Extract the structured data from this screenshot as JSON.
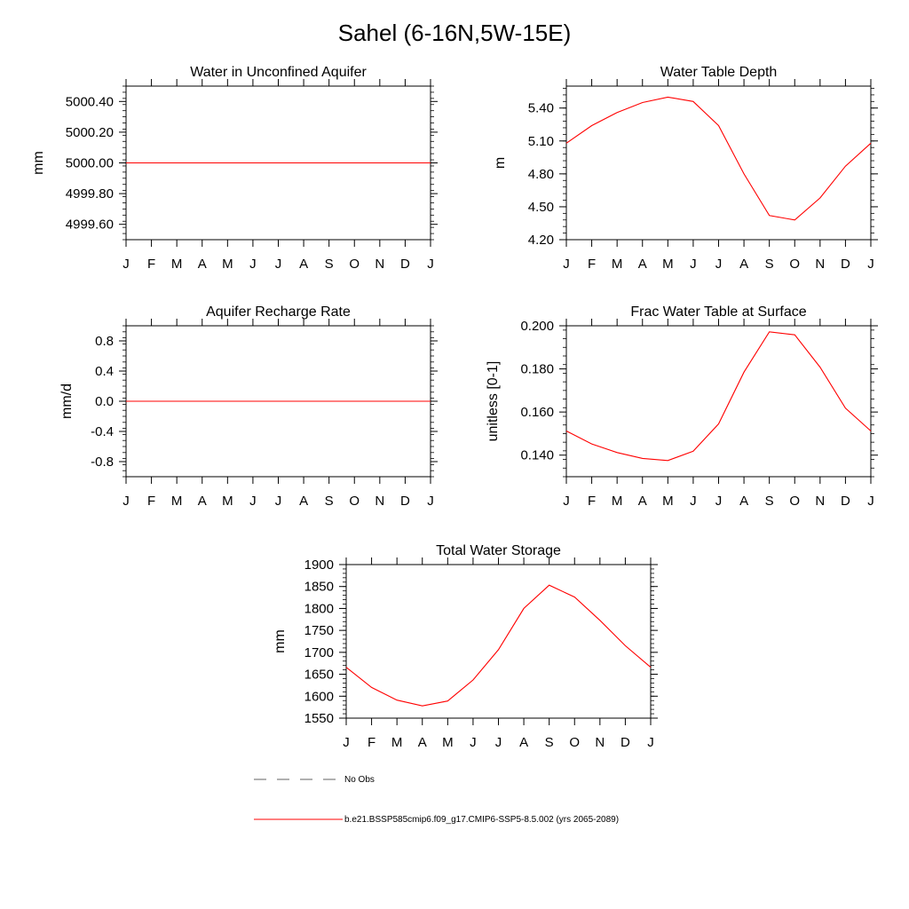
{
  "title": "Sahel (6-16N,5W-15E)",
  "colors": {
    "model": "#ff0000",
    "obs": "#808080",
    "axis": "#000000"
  },
  "legend": {
    "obs_label": "No Obs",
    "model_label": "b.e21.BSSP585cmip6.f09_g17.CMIP6-SSP5-8.5.002 (yrs 2065-2089)"
  },
  "chart_data": [
    {
      "id": "aquifer",
      "type": "line",
      "title": "Water in Unconfined Aquifer",
      "xlabel": "",
      "ylabel": "mm",
      "categories": [
        "J",
        "F",
        "M",
        "A",
        "M",
        "J",
        "J",
        "A",
        "S",
        "O",
        "N",
        "D",
        "J"
      ],
      "ylim": [
        4999.5,
        5000.5
      ],
      "yticks": [
        "5000.40",
        "5000.20",
        "5000.00",
        "4999.80",
        "4999.60"
      ],
      "ytick_values": [
        5000.4,
        5000.2,
        5000.0,
        4999.8,
        4999.6
      ],
      "series": [
        {
          "name": "model",
          "values": [
            5000,
            5000,
            5000,
            5000,
            5000,
            5000,
            5000,
            5000,
            5000,
            5000,
            5000,
            5000,
            5000
          ]
        }
      ]
    },
    {
      "id": "wtd",
      "type": "line",
      "title": "Water Table Depth",
      "xlabel": "",
      "ylabel": "m",
      "categories": [
        "J",
        "F",
        "M",
        "A",
        "M",
        "J",
        "J",
        "A",
        "S",
        "O",
        "N",
        "D",
        "J"
      ],
      "ylim": [
        4.2,
        5.6
      ],
      "yticks": [
        "5.40",
        "5.10",
        "4.80",
        "4.50",
        "4.20"
      ],
      "ytick_values": [
        5.4,
        5.1,
        4.8,
        4.5,
        4.2
      ],
      "series": [
        {
          "name": "model",
          "values": [
            5.08,
            5.24,
            5.36,
            5.45,
            5.5,
            5.46,
            5.24,
            4.8,
            4.42,
            4.38,
            4.58,
            4.87,
            5.08
          ]
        }
      ]
    },
    {
      "id": "recharge",
      "type": "line",
      "title": "Aquifer Recharge Rate",
      "xlabel": "",
      "ylabel": "mm/d",
      "categories": [
        "J",
        "F",
        "M",
        "A",
        "M",
        "J",
        "J",
        "A",
        "S",
        "O",
        "N",
        "D",
        "J"
      ],
      "ylim": [
        -1.0,
        1.0
      ],
      "yticks": [
        "0.8",
        "0.4",
        "0.0",
        "-0.4",
        "-0.8"
      ],
      "ytick_values": [
        0.8,
        0.4,
        0.0,
        -0.4,
        -0.8
      ],
      "series": [
        {
          "name": "model",
          "values": [
            0,
            0,
            0,
            0,
            0,
            0,
            0,
            0,
            0,
            0,
            0,
            0,
            0
          ]
        }
      ]
    },
    {
      "id": "frac",
      "type": "line",
      "title": "Frac Water Table at Surface",
      "xlabel": "",
      "ylabel": "unitless [0-1]",
      "categories": [
        "J",
        "F",
        "M",
        "A",
        "M",
        "J",
        "J",
        "A",
        "S",
        "O",
        "N",
        "D",
        "J"
      ],
      "ylim": [
        0.13,
        0.2
      ],
      "yticks": [
        "0.200",
        "0.180",
        "0.160",
        "0.140"
      ],
      "ytick_values": [
        0.2,
        0.18,
        0.16,
        0.14
      ],
      "series": [
        {
          "name": "model",
          "values": [
            0.1512,
            0.1452,
            0.1412,
            0.1385,
            0.1375,
            0.1418,
            0.1545,
            0.1785,
            0.1972,
            0.1958,
            0.1808,
            0.1618,
            0.1512
          ]
        }
      ]
    },
    {
      "id": "tws",
      "type": "line",
      "title": "Total Water Storage",
      "xlabel": "",
      "ylabel": "mm",
      "categories": [
        "J",
        "F",
        "M",
        "A",
        "M",
        "J",
        "J",
        "A",
        "S",
        "O",
        "N",
        "D",
        "J"
      ],
      "ylim": [
        1550,
        1900
      ],
      "yticks": [
        "1900",
        "1850",
        "1800",
        "1750",
        "1700",
        "1650",
        "1600",
        "1550"
      ],
      "ytick_values": [
        1900,
        1850,
        1800,
        1750,
        1700,
        1650,
        1600,
        1550
      ],
      "series": [
        {
          "name": "model",
          "values": [
            1666,
            1620,
            1591,
            1578,
            1589,
            1637,
            1706,
            1800,
            1853,
            1826,
            1773,
            1715,
            1666
          ]
        }
      ]
    }
  ]
}
